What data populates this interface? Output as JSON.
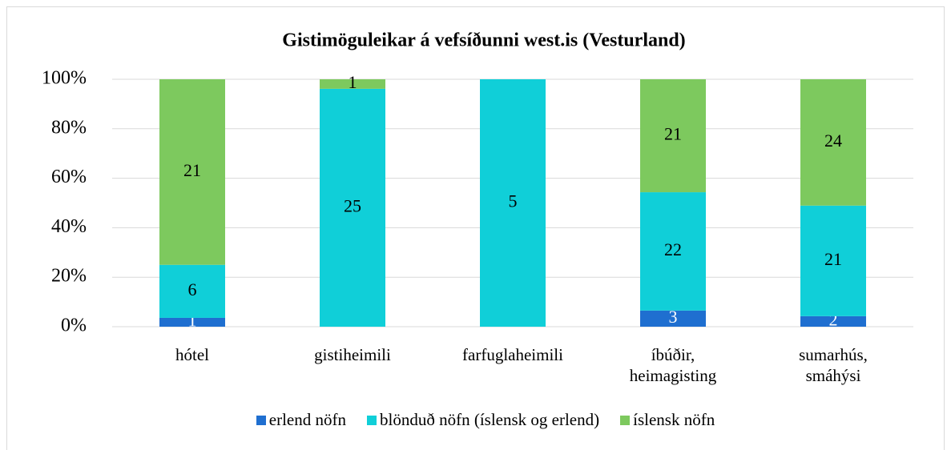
{
  "chart_data": {
    "type": "bar",
    "stacking": "percent",
    "title": "Gistimöguleikar á vefsíðunni west.is (Vesturland)",
    "categories": [
      "hótel",
      "gistiheimili",
      "farfuglaheimili",
      "íbúðir, heimagisting",
      "sumarhús, smáhýsi"
    ],
    "series": [
      {
        "name": "erlend nöfn",
        "color": "#1f6fd0",
        "label_color": "#ffffff",
        "values": [
          1,
          null,
          null,
          3,
          2
        ]
      },
      {
        "name": "blönduð nöfn (íslensk og erlend)",
        "color": "#10cfd8",
        "label_color": "#000000",
        "values": [
          6,
          25,
          5,
          22,
          21
        ]
      },
      {
        "name": "íslensk nöfn",
        "color": "#7dc95e",
        "label_color": "#000000",
        "values": [
          21,
          1,
          null,
          21,
          24
        ]
      }
    ],
    "ylim": [
      0,
      100
    ],
    "yticks": [
      {
        "value": 0,
        "label": "0%"
      },
      {
        "value": 20,
        "label": "20%"
      },
      {
        "value": 40,
        "label": "40%"
      },
      {
        "value": 60,
        "label": "60%"
      },
      {
        "value": 80,
        "label": "80%"
      },
      {
        "value": 100,
        "label": "100%"
      }
    ],
    "grid": true,
    "legend": "bottom"
  }
}
